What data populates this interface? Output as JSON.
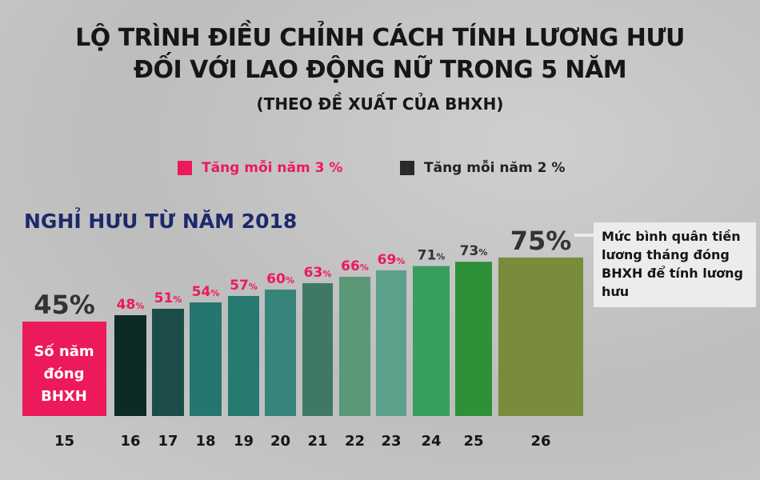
{
  "title": {
    "line1": "LỘ TRÌNH ĐIỀU CHỈNH CÁCH TÍNH LƯƠNG HƯU",
    "line2": "ĐỐI VỚI LAO ĐỘNG NỮ TRONG 5 NĂM",
    "line3": "(THEO ĐỀ XUẤT CỦA BHXH)"
  },
  "subtitle": "NGHỈ HƯU TỪ NĂM 2018",
  "note": "Mức bình quân tiền lương tháng đóng BHXH để tính lương hưu",
  "first_bar_label": [
    "Số năm",
    "đóng",
    "BHXH"
  ],
  "colors": {
    "pink": "#ec1a5a",
    "dark": "#2a2a2a",
    "navy": "#1c2a6b"
  },
  "chart_data": {
    "type": "bar",
    "categories": [
      "15",
      "16",
      "17",
      "18",
      "19",
      "20",
      "21",
      "22",
      "23",
      "24",
      "25",
      "26"
    ],
    "values": [
      45,
      48,
      51,
      54,
      57,
      60,
      63,
      66,
      69,
      71,
      73,
      75
    ],
    "value_labels": [
      "45%",
      "48%",
      "51%",
      "54%",
      "57%",
      "60%",
      "63%",
      "66%",
      "69%",
      "71%",
      "73%",
      "75%"
    ],
    "bar_colors": [
      "#ec1a5a",
      "#0e2a26",
      "#1c4d4a",
      "#257570",
      "#267a70",
      "#37847a",
      "#3f7866",
      "#5a9878",
      "#5da08a",
      "#379e5f",
      "#2e9038",
      "#788c3c"
    ],
    "label_colors": [
      "#333333",
      "#ec1a5a",
      "#ec1a5a",
      "#ec1a5a",
      "#ec1a5a",
      "#ec1a5a",
      "#ec1a5a",
      "#ec1a5a",
      "#ec1a5a",
      "#333333",
      "#333333",
      "#333333"
    ],
    "legend": [
      {
        "label": "Tăng mỗi năm 3 %",
        "color": "#ec1a5a"
      },
      {
        "label": "Tăng mỗi năm 2 %",
        "color": "#2a2a2a"
      }
    ],
    "grid": false,
    "legend_position": "top"
  }
}
